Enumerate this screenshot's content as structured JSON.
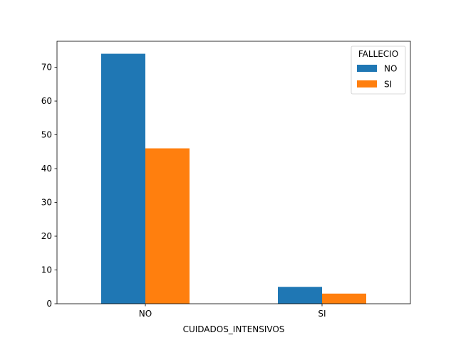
{
  "chart_data": {
    "type": "bar",
    "categories": [
      "NO",
      "SI"
    ],
    "series": [
      {
        "name": "NO",
        "values": [
          74,
          5
        ],
        "color": "#1f77b4"
      },
      {
        "name": "SI",
        "values": [
          46,
          3
        ],
        "color": "#ff7f0e"
      }
    ],
    "xlabel": "CUIDADOS_INTENSIVOS",
    "ylabel": "",
    "ylim": [
      0,
      77.7
    ],
    "yticks": [
      0,
      10,
      20,
      30,
      40,
      50,
      60,
      70
    ],
    "legend": {
      "title": "FALLECIO",
      "placement": "top-right"
    },
    "grid": false
  }
}
